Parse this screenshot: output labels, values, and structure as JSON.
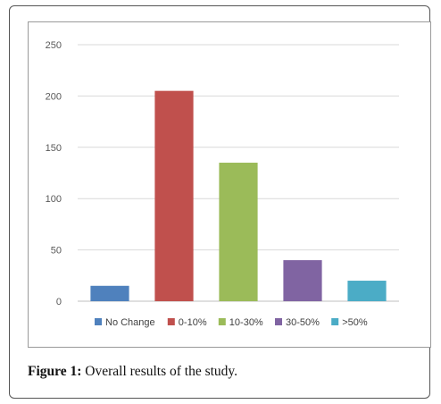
{
  "figure": {
    "label": "Figure 1:",
    "caption": " Overall results of the study."
  },
  "chart_data": {
    "type": "bar",
    "categories": [
      "No Change",
      "0-10%",
      "10-30%",
      "30-50%",
      ">50%"
    ],
    "values": [
      15,
      205,
      135,
      40,
      20
    ],
    "colors": [
      "#4f81bd",
      "#c0504d",
      "#9bbb59",
      "#8064a2",
      "#4bacc6"
    ],
    "ylim": [
      0,
      250
    ],
    "yticks": [
      0,
      50,
      100,
      150,
      200,
      250
    ],
    "grid": true,
    "legend_position": "bottom",
    "title": "",
    "xlabel": "",
    "ylabel": ""
  }
}
